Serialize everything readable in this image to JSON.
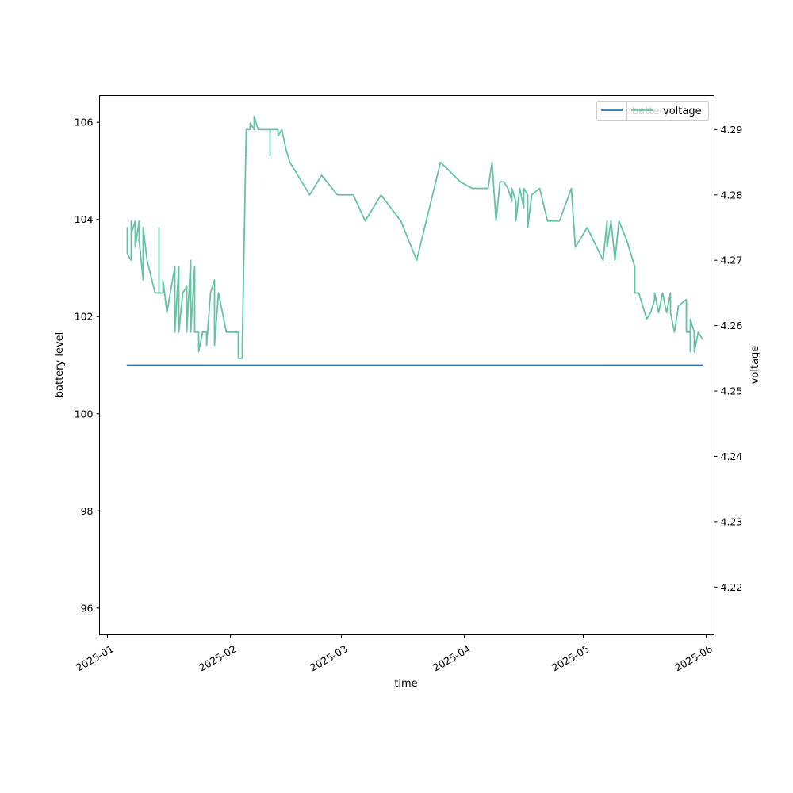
{
  "chart_data": {
    "type": "line",
    "title": "",
    "xlabel": "time",
    "ylabel_left": "battery level",
    "ylabel_right": "voltage",
    "x_ticks": [
      "2025-01",
      "2025-02",
      "2025-03",
      "2025-04",
      "2025-05",
      "2025-06"
    ],
    "y_left_ticks": [
      96,
      98,
      100,
      102,
      104,
      106
    ],
    "y_right_ticks": [
      4.22,
      4.23,
      4.24,
      4.25,
      4.26,
      4.27,
      4.28,
      4.29
    ],
    "xlim": [
      "2024-12-30",
      "2025-06-03"
    ],
    "ylim_left": [
      95.45,
      106.55
    ],
    "ylim_right": [
      4.2127,
      4.2952
    ],
    "grid": false,
    "legends": [
      {
        "placement": "upper right",
        "entries": [
          "battery"
        ]
      },
      {
        "placement": "upper right",
        "entries": [
          "voltage"
        ]
      }
    ],
    "series": [
      {
        "name": "battery",
        "axis": "left",
        "color": "#1f77b4",
        "points": [
          [
            "2025-01-06",
            101.0
          ],
          [
            "2025-05-31",
            101.0
          ]
        ]
      },
      {
        "name": "voltage",
        "axis": "right",
        "color": "#66c2a5",
        "points": [
          [
            "2025-01-06",
            4.275
          ],
          [
            "2025-01-06",
            4.271
          ],
          [
            "2025-01-07",
            4.27
          ],
          [
            "2025-01-07",
            4.276
          ],
          [
            "2025-01-07",
            4.274
          ],
          [
            "2025-01-08",
            4.276
          ],
          [
            "2025-01-08",
            4.272
          ],
          [
            "2025-01-09",
            4.276
          ],
          [
            "2025-01-09",
            4.273
          ],
          [
            "2025-01-10",
            4.267
          ],
          [
            "2025-01-10",
            4.275
          ],
          [
            "2025-01-11",
            4.27
          ],
          [
            "2025-01-13",
            4.265
          ],
          [
            "2025-01-14",
            4.265
          ],
          [
            "2025-01-14",
            4.275
          ],
          [
            "2025-01-14",
            4.265
          ],
          [
            "2025-01-15",
            4.265
          ],
          [
            "2025-01-15",
            4.267
          ],
          [
            "2025-01-16",
            4.262
          ],
          [
            "2025-01-18",
            4.269
          ],
          [
            "2025-01-18",
            4.259
          ],
          [
            "2025-01-19",
            4.269
          ],
          [
            "2025-01-19",
            4.259
          ],
          [
            "2025-01-20",
            4.265
          ],
          [
            "2025-01-21",
            4.266
          ],
          [
            "2025-01-21",
            4.259
          ],
          [
            "2025-01-22",
            4.27
          ],
          [
            "2025-01-22",
            4.259
          ],
          [
            "2025-01-23",
            4.269
          ],
          [
            "2025-01-23",
            4.259
          ],
          [
            "2025-01-24",
            4.259
          ],
          [
            "2025-01-24",
            4.256
          ],
          [
            "2025-01-25",
            4.259
          ],
          [
            "2025-01-26",
            4.259
          ],
          [
            "2025-01-26",
            4.257
          ],
          [
            "2025-01-27",
            4.265
          ],
          [
            "2025-01-28",
            4.267
          ],
          [
            "2025-01-28",
            4.257
          ],
          [
            "2025-01-29",
            4.265
          ],
          [
            "2025-01-31",
            4.259
          ],
          [
            "2025-02-03",
            4.259
          ],
          [
            "2025-02-03",
            4.255
          ],
          [
            "2025-02-04",
            4.255
          ],
          [
            "2025-02-04",
            4.257
          ],
          [
            "2025-02-05",
            4.29
          ],
          [
            "2025-02-05",
            4.286
          ],
          [
            "2025-02-05",
            4.29
          ],
          [
            "2025-02-06",
            4.29
          ],
          [
            "2025-02-06",
            4.291
          ],
          [
            "2025-02-07",
            4.29
          ],
          [
            "2025-02-07",
            4.292
          ],
          [
            "2025-02-08",
            4.29
          ],
          [
            "2025-02-11",
            4.29
          ],
          [
            "2025-02-11",
            4.286
          ],
          [
            "2025-02-11",
            4.29
          ],
          [
            "2025-02-13",
            4.29
          ],
          [
            "2025-02-13",
            4.289
          ],
          [
            "2025-02-14",
            4.29
          ],
          [
            "2025-02-15",
            4.287
          ],
          [
            "2025-02-16",
            4.285
          ],
          [
            "2025-02-17",
            4.284
          ],
          [
            "2025-02-21",
            4.28
          ],
          [
            "2025-02-24",
            4.283
          ],
          [
            "2025-02-28",
            4.28
          ],
          [
            "2025-03-04",
            4.28
          ],
          [
            "2025-03-07",
            4.276
          ],
          [
            "2025-03-11",
            4.28
          ],
          [
            "2025-03-16",
            4.276
          ],
          [
            "2025-03-20",
            4.27
          ],
          [
            "2025-03-26",
            4.285
          ],
          [
            "2025-03-31",
            4.282
          ],
          [
            "2025-04-03",
            4.281
          ],
          [
            "2025-04-07",
            4.281
          ],
          [
            "2025-04-08",
            4.285
          ],
          [
            "2025-04-09",
            4.276
          ],
          [
            "2025-04-10",
            4.282
          ],
          [
            "2025-04-11",
            4.282
          ],
          [
            "2025-04-12",
            4.281
          ],
          [
            "2025-04-13",
            4.279
          ],
          [
            "2025-04-13",
            4.281
          ],
          [
            "2025-04-14",
            4.279
          ],
          [
            "2025-04-14",
            4.276
          ],
          [
            "2025-04-15",
            4.281
          ],
          [
            "2025-04-16",
            4.278
          ],
          [
            "2025-04-16",
            4.281
          ],
          [
            "2025-04-17",
            4.28
          ],
          [
            "2025-04-17",
            4.275
          ],
          [
            "2025-04-18",
            4.28
          ],
          [
            "2025-04-20",
            4.281
          ],
          [
            "2025-04-22",
            4.276
          ],
          [
            "2025-04-25",
            4.276
          ],
          [
            "2025-04-28",
            4.281
          ],
          [
            "2025-04-29",
            4.272
          ],
          [
            "2025-05-02",
            4.275
          ],
          [
            "2025-05-06",
            4.27
          ],
          [
            "2025-05-07",
            4.276
          ],
          [
            "2025-05-07",
            4.272
          ],
          [
            "2025-05-08",
            4.276
          ],
          [
            "2025-05-09",
            4.27
          ],
          [
            "2025-05-10",
            4.276
          ],
          [
            "2025-05-12",
            4.273
          ],
          [
            "2025-05-14",
            4.269
          ],
          [
            "2025-05-14",
            4.265
          ],
          [
            "2025-05-15",
            4.265
          ],
          [
            "2025-05-17",
            4.261
          ],
          [
            "2025-05-18",
            4.262
          ],
          [
            "2025-05-19",
            4.264
          ],
          [
            "2025-05-19",
            4.265
          ],
          [
            "2025-05-20",
            4.262
          ],
          [
            "2025-05-21",
            4.265
          ],
          [
            "2025-05-22",
            4.262
          ],
          [
            "2025-05-23",
            4.265
          ],
          [
            "2025-05-23",
            4.262
          ],
          [
            "2025-05-24",
            4.259
          ],
          [
            "2025-05-25",
            4.263
          ],
          [
            "2025-05-27",
            4.264
          ],
          [
            "2025-05-27",
            4.259
          ],
          [
            "2025-05-28",
            4.259
          ],
          [
            "2025-05-28",
            4.256
          ],
          [
            "2025-05-28",
            4.261
          ],
          [
            "2025-05-29",
            4.259
          ],
          [
            "2025-05-29",
            4.256
          ],
          [
            "2025-05-30",
            4.259
          ],
          [
            "2025-05-31",
            4.258
          ]
        ]
      }
    ]
  }
}
